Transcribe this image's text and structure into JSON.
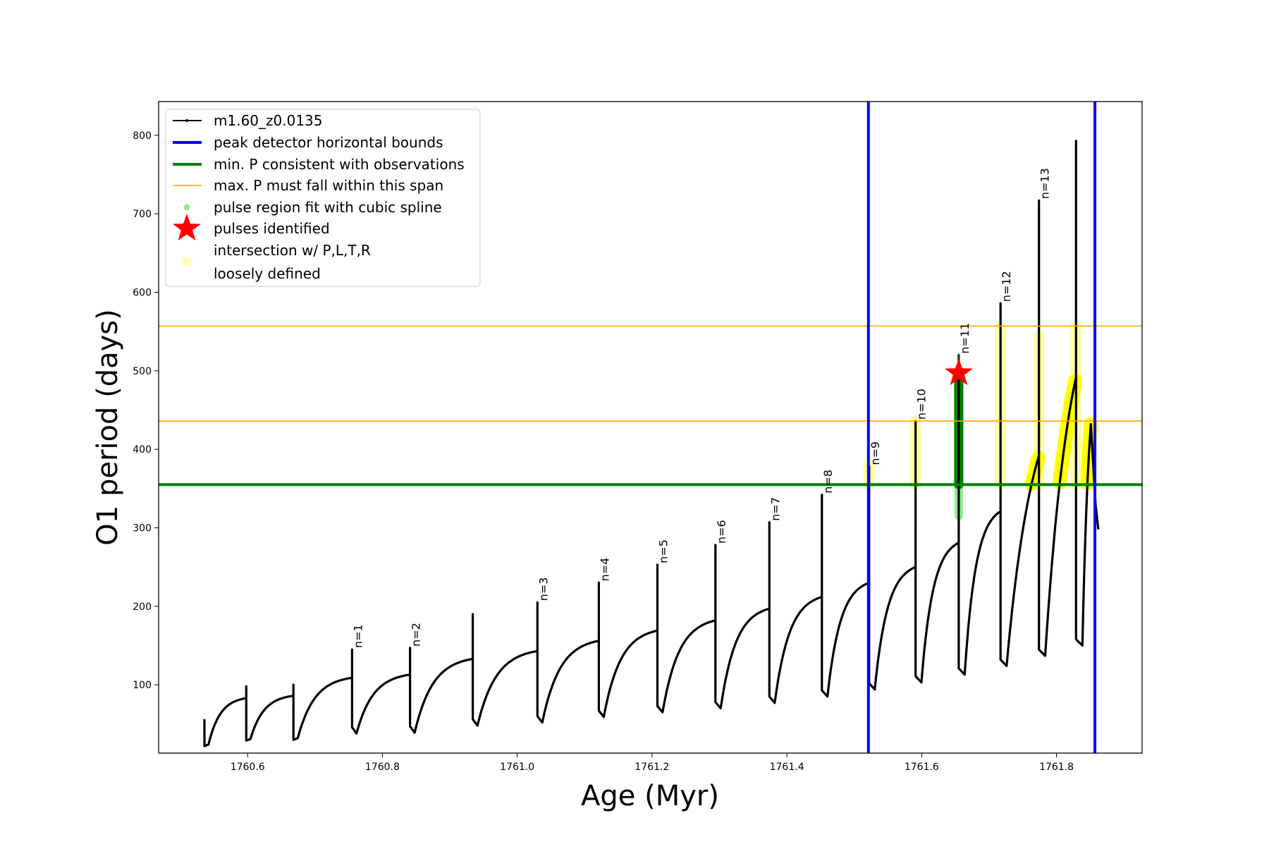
{
  "chart_data": {
    "type": "line",
    "title": "",
    "xlabel": "Age (Myr)",
    "ylabel": "O1 period (days)",
    "xlim": [
      1760.468,
      1761.927
    ],
    "ylim": [
      13,
      843
    ],
    "grid": false,
    "legend_placement": "top-left",
    "xticks": [
      1760.6,
      1760.8,
      1761.0,
      1761.2,
      1761.4,
      1761.6,
      1761.8
    ],
    "xtick_labels": [
      "1760.6",
      "1760.8",
      "1761.0",
      "1761.2",
      "1761.4",
      "1761.6",
      "1761.8"
    ],
    "yticks": [
      100,
      200,
      300,
      400,
      500,
      600,
      700,
      800
    ],
    "ytick_labels": [
      "100",
      "200",
      "300",
      "400",
      "500",
      "600",
      "700",
      "800"
    ],
    "series_name": "m1.60_z0.0135",
    "pulses": [
      {
        "age": 1760.536,
        "pre_max": 50,
        "spike": 55,
        "post_min": 24,
        "label": ""
      },
      {
        "age": 1760.598,
        "pre_max": 83,
        "spike": 98,
        "post_min": 31,
        "label": ""
      },
      {
        "age": 1760.668,
        "pre_max": 86,
        "spike": 100,
        "post_min": 32,
        "label": ""
      },
      {
        "age": 1760.755,
        "pre_max": 109,
        "spike": 145,
        "post_min": 38,
        "label": "n=1"
      },
      {
        "age": 1760.841,
        "pre_max": 113,
        "spike": 147,
        "post_min": 39,
        "label": "n=2"
      },
      {
        "age": 1760.934,
        "pre_max": 133,
        "spike": 190,
        "post_min": 48,
        "label": ""
      },
      {
        "age": 1761.03,
        "pre_max": 143,
        "spike": 205,
        "post_min": 52,
        "label": "n=3"
      },
      {
        "age": 1761.121,
        "pre_max": 156,
        "spike": 230,
        "post_min": 59,
        "label": "n=4"
      },
      {
        "age": 1761.208,
        "pre_max": 169,
        "spike": 253,
        "post_min": 65,
        "label": "n=5"
      },
      {
        "age": 1761.294,
        "pre_max": 182,
        "spike": 278,
        "post_min": 70,
        "label": "n=6"
      },
      {
        "age": 1761.374,
        "pre_max": 197,
        "spike": 307,
        "post_min": 77,
        "label": "n=7"
      },
      {
        "age": 1761.452,
        "pre_max": 212,
        "spike": 342,
        "post_min": 85,
        "label": "n=8"
      },
      {
        "age": 1761.522,
        "pre_max": 230,
        "spike": 378,
        "post_min": 94,
        "label": "n=9"
      },
      {
        "age": 1761.591,
        "pre_max": 250,
        "spike": 436,
        "post_min": 103,
        "label": "n=10"
      },
      {
        "age": 1761.655,
        "pre_max": 281,
        "spike": 520,
        "post_min": 113,
        "label": "n=11"
      },
      {
        "age": 1761.717,
        "pre_max": 321,
        "spike": 586,
        "post_min": 124,
        "label": "n=12"
      },
      {
        "age": 1761.774,
        "pre_max": 392,
        "spike": 717,
        "post_min": 137,
        "label": "n=13"
      },
      {
        "age": 1761.829,
        "pre_max": 492,
        "spike": 793,
        "post_min": 150,
        "label": ""
      }
    ],
    "tail": [
      [
        1761.851,
        432
      ],
      [
        1761.858,
        330
      ],
      [
        1761.862,
        298
      ]
    ],
    "peak_detector_bounds": [
      1761.521,
      1761.857
    ],
    "min_P_observations": 355,
    "max_P_span": [
      436,
      557
    ],
    "loosely_defined_columns": [
      {
        "age": 1761.522,
        "from": 355,
        "to": 380
      },
      {
        "age": 1761.591,
        "from": 355,
        "to": 436
      },
      {
        "age": 1761.717,
        "from": 355,
        "to": 556
      },
      {
        "age": 1761.774,
        "from": 355,
        "to": 545
      },
      {
        "age": 1761.829,
        "from": 355,
        "to": 556
      }
    ],
    "spline_fit_region": {
      "age": 1761.655,
      "from": 315,
      "to": 500
    },
    "spline_fit_dense": {
      "age": 1761.655,
      "from": 355,
      "to": 497
    },
    "pulse_identified": {
      "age": 1761.655,
      "period": 497
    },
    "legend": [
      {
        "label": "m1.60_z0.0135",
        "kind": "line-marker",
        "color": "#000000"
      },
      {
        "label": "peak detector horizontal bounds",
        "kind": "line",
        "color": "#0000ff"
      },
      {
        "label": "min. P consistent with observations",
        "kind": "line",
        "color": "#008000"
      },
      {
        "label": "max. P must fall within this span",
        "kind": "thin-line",
        "color": "#ffa500"
      },
      {
        "label": "pulse region fit with cubic spline",
        "kind": "dot",
        "color": "#90ee90"
      },
      {
        "label": "pulses identified",
        "kind": "star",
        "color": "#ff0000"
      },
      {
        "label": "intersection w/ P,L,T,R",
        "label2": "loosely defined",
        "kind": "dot",
        "color": "#ffff80"
      }
    ]
  }
}
